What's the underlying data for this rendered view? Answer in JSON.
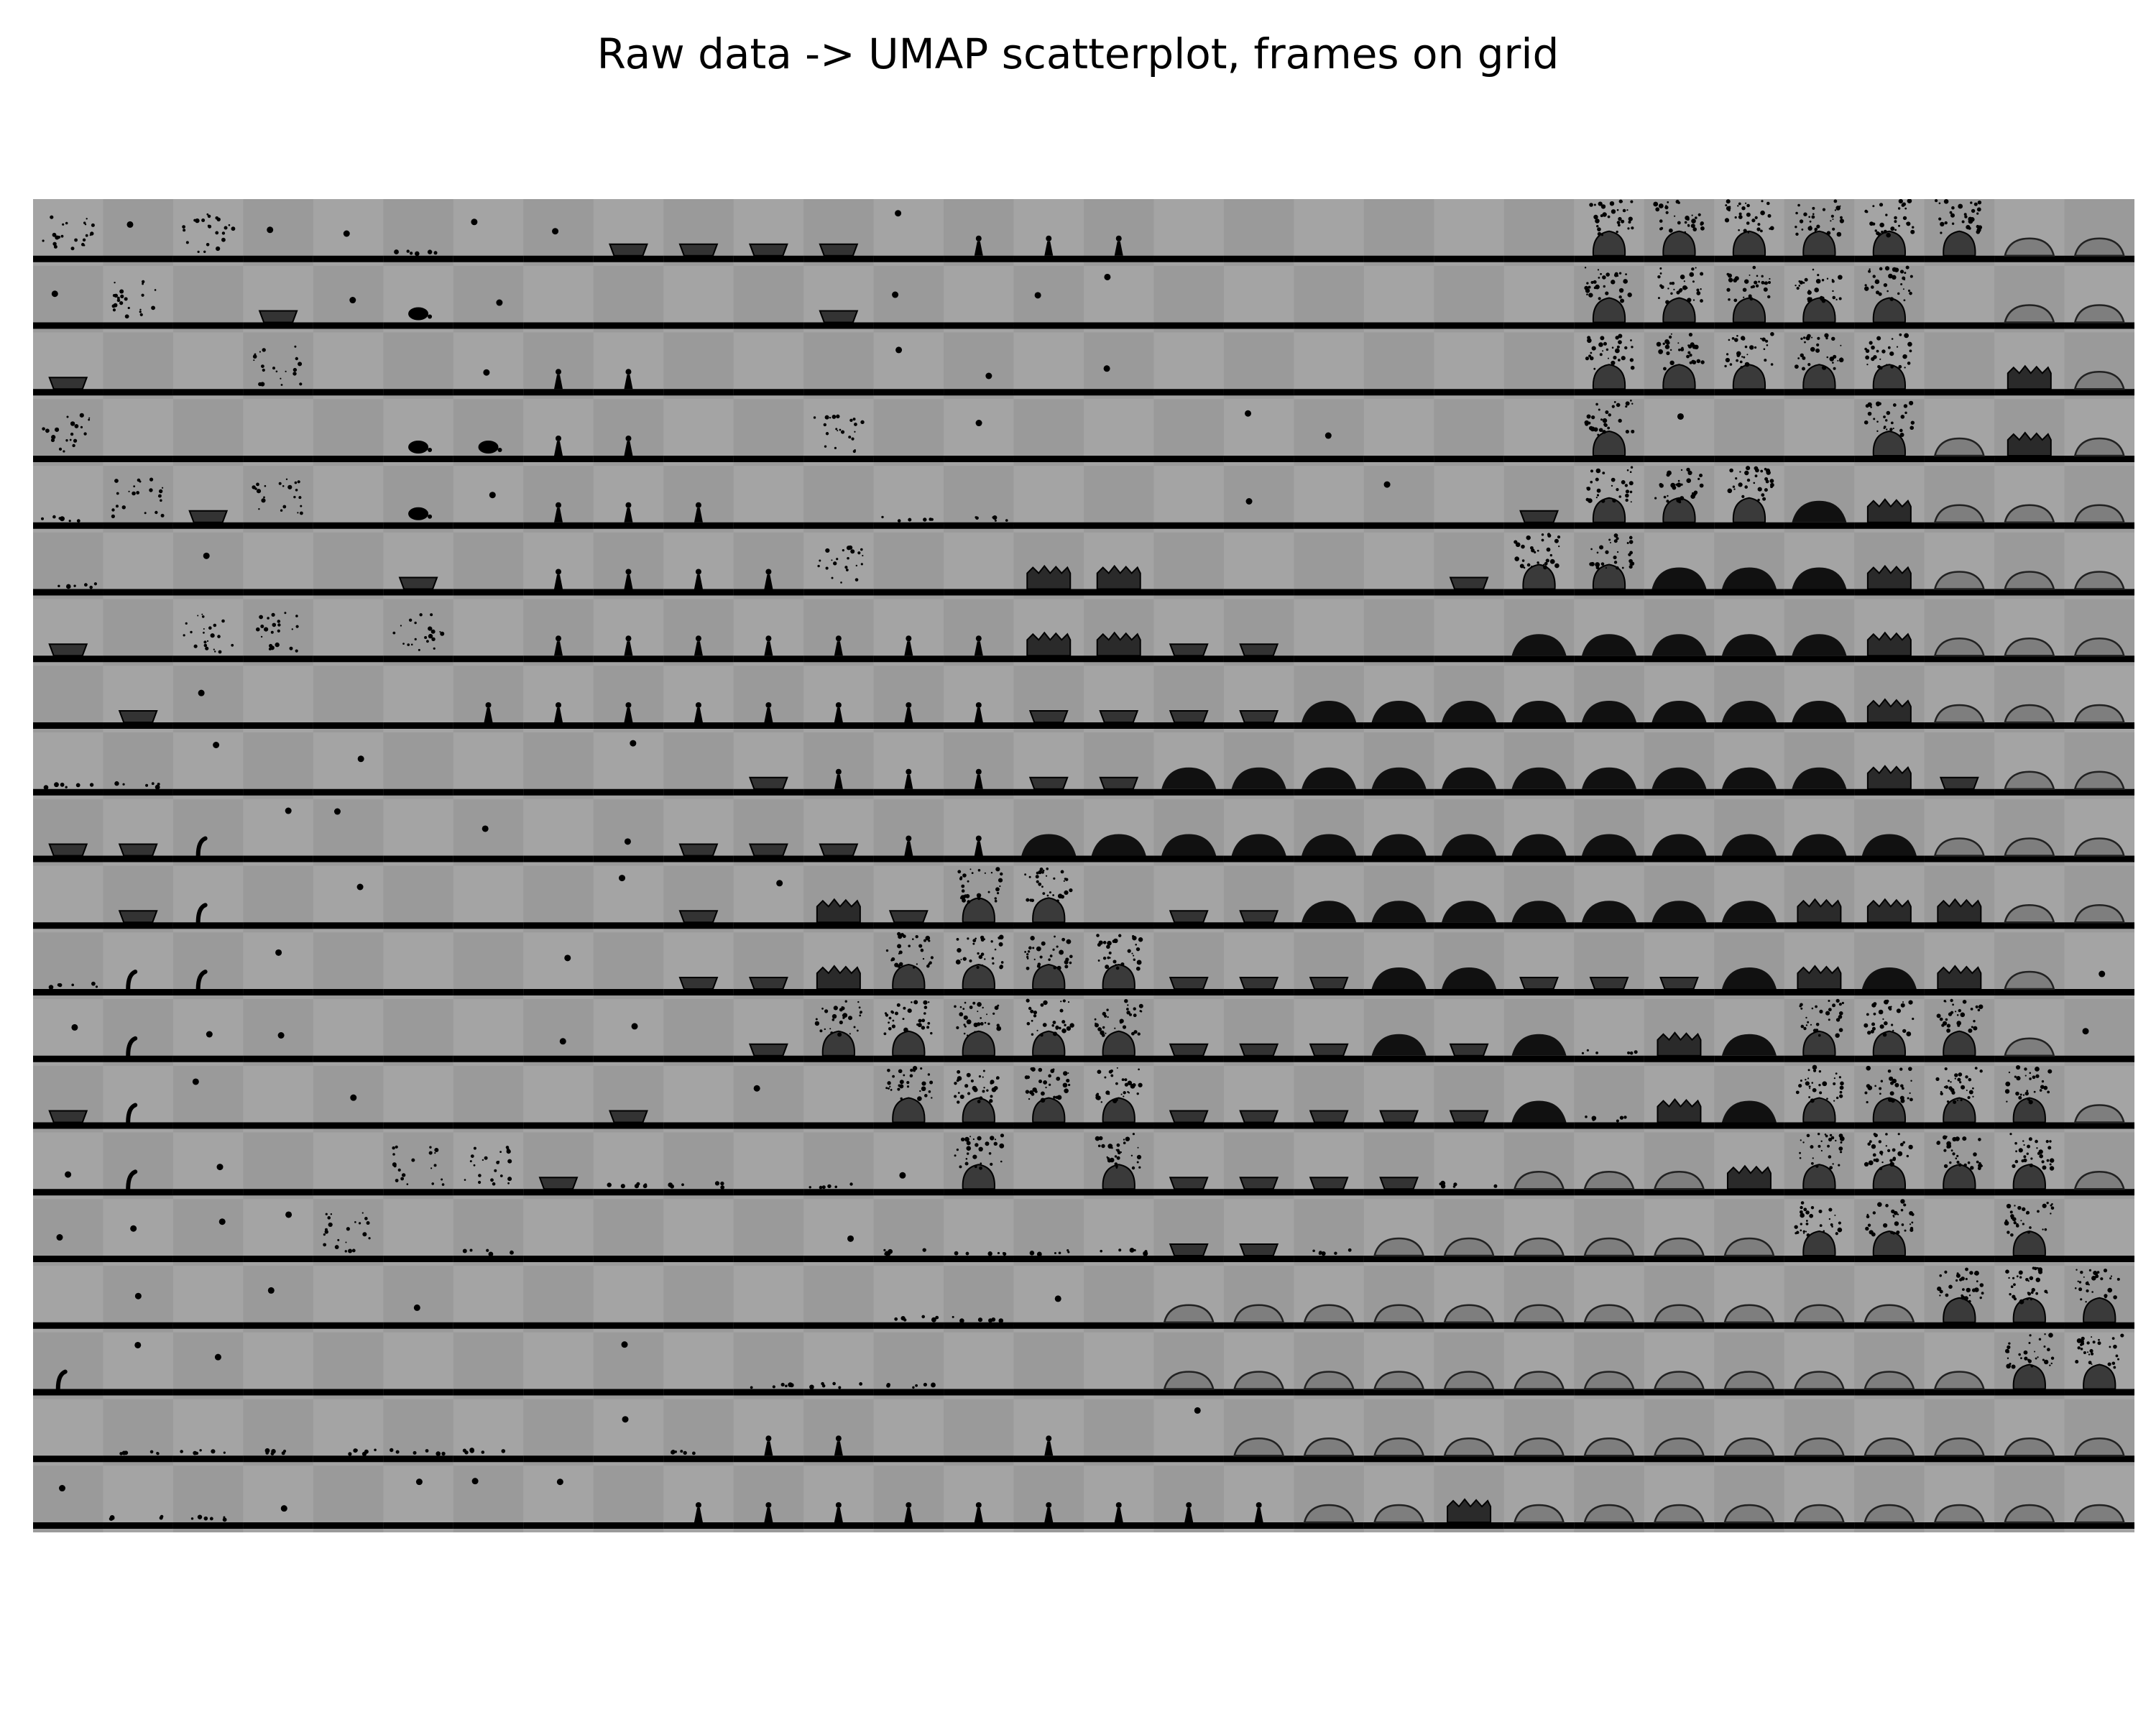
{
  "title": "Raw data -> UMAP scatterplot, frames on grid",
  "grid": {
    "columns": 30,
    "rows": 20,
    "frame_background": "#a4a4a4",
    "frame_background_alt": "#9a9a9a",
    "substrate_color": "#000000"
  },
  "cells": [
    "scatter,drop,scatter,drop,drop,dots,drop,drop,pan,pan,pan,pan,drop,needle,needle,needle,empty,empty,empty,empty,empty,empty,splash,splash,splash,splash,splash,splash,dome-outline,dome-outline",
    "drop,scatter,empty,pan,drop,blob,drop,empty,empty,empty,empty,pan,drop,empty,drop,drop,empty,empty,empty,empty,empty,empty,splash,splash,splash,splash,splash,empty,dome-outline,dome-outline",
    "pan,empty,empty,scatter,empty,empty,drop,needle,needle,empty,empty,empty,drop,drop,empty,drop,empty,empty,empty,empty,empty,empty,splash,splash,splash,splash,splash,empty,crown,dome-outline",
    "scatter,empty,empty,empty,empty,blob,blob,needle,needle,empty,empty,scatter,empty,drop,empty,empty,empty,drop,drop,empty,empty,empty,splash,drop,empty,empty,splash,dome-outline,crown,dome-outline",
    "dots,scatter,pan,scatter,empty,blob,drop,needle,needle,needle,empty,empty,dots,dots,empty,empty,empty,drop,empty,drop,empty,pan,splash,splash,splash,dome,crown,dome-outline,dome-outline,dome-outline",
    "dots,empty,drop,empty,empty,pan,empty,needle,needle,needle,needle,scatter,empty,empty,crown,crown,empty,empty,empty,empty,pan,splash,splash,dome,dome,dome,crown,dome-outline,dome-outline,dome-outline",
    "pan,empty,scatter,scatter,empty,scatter,empty,needle,needle,needle,needle,needle,needle,needle,crown,crown,pan,pan,empty,empty,empty,dome,dome,dome,dome,dome,crown,dome-outline,dome-outline,dome-outline",
    "empty,pan,drop,empty,empty,empty,needle,needle,needle,needle,needle,needle,needle,needle,pan,pan,pan,pan,dome,dome,dome,dome,dome,dome,dome,dome,crown,dome-outline,dome-outline,dome-outline",
    "dots,dots,drop,empty,drop,empty,empty,empty,drop,empty,pan,needle,needle,needle,pan,pan,dome,dome,dome,dome,dome,dome,dome,dome,dome,dome,crown,pan,dome-outline,dome-outline",
    "pan,pan,hook,drop,drop,empty,drop,empty,drop,pan,pan,pan,needle,needle,dome,dome,dome,dome,dome,dome,dome,dome,dome,dome,dome,dome,dome,dome-outline,dome-outline,dome-outline",
    "empty,pan,hook,empty,drop,empty,empty,empty,drop,pan,drop,crown,pan,splash,splash,empty,pan,pan,dome,dome,dome,dome,dome,dome,dome,crown,crown,crown,dome-outline,dome-outline",
    "dots,hook,hook,drop,empty,empty,empty,drop,empty,pan,pan,crown,splash,splash,splash,splash,pan,pan,pan,dome,dome,pan,pan,pan,dome,crown,dome,crown,dome-outline,drop",
    "drop,hook,drop,drop,empty,empty,empty,drop,drop,empty,pan,splash,splash,splash,splash,splash,pan,pan,pan,dome,pan,dome,dots,crown,dome,splash,splash,splash,dome-outline,drop",
    "pan,hook,drop,empty,drop,empty,empty,empty,pan,empty,drop,empty,splash,splash,splash,splash,pan,pan,pan,pan,pan,dome,dots,crown,dome,splash,splash,splash,splash,dome-outline",
    "drop,hook,drop,empty,empty,scatter,scatter,pan,dots,dots,empty,dots,drop,splash,empty,splash,pan,pan,pan,pan,dots,dome-outline,dome-outline,dome-outline,crown,splash,splash,splash,splash,dome-outline",
    "drop,drop,drop,drop,scatter,empty,dots,empty,empty,empty,empty,drop,dots,dots,dots,dots,pan,pan,dots,dome-outline,dome-outline,dome-outline,dome-outline,dome-outline,dome-outline,splash,splash,empty,splash,empty",
    "empty,drop,empty,drop,empty,drop,empty,empty,empty,empty,empty,empty,dots,dots,drop,empty,dome-outline,dome-outline,dome-outline,dome-outline,dome-outline,dome-outline,dome-outline,dome-outline,dome-outline,dome-outline,dome-outline,splash,splash,splash",
    "hook,drop,drop,empty,empty,empty,empty,empty,drop,empty,dots,dots,dots,empty,empty,empty,dome-outline,dome-outline,dome-outline,dome-outline,dome-outline,dome-outline,dome-outline,dome-outline,dome-outline,dome-outline,dome-outline,dome-outline,splash,splash",
    "empty,dots,dots,dots,dots,dots,dots,empty,drop,dots,needle,needle,empty,empty,needle,empty,drop,dome-outline,dome-outline,dome-outline,dome-outline,dome-outline,dome-outline,dome-outline,dome-outline,dome-outline,dome-outline,dome-outline,dome-outline,dome-outline",
    "drop,dots,dots,drop,empty,drop,drop,drop,empty,needle,needle,needle,needle,needle,needle,needle,needle,needle,dome-outline,dome-outline,crown,dome-outline,dome-outline,dome-outline,dome-outline,dome-outline,dome-outline,dome-outline,dome-outline,dome-outline"
  ]
}
